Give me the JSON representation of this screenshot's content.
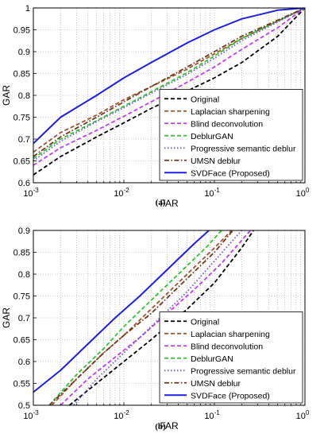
{
  "chart_data": [
    {
      "panel": "(a)",
      "type": "line",
      "xlabel": "FAR",
      "ylabel": "GAR",
      "xscale": "log",
      "xlim": [
        0.001,
        1
      ],
      "ylim": [
        0.6,
        1
      ],
      "xticks": [
        {
          "value": 0.001,
          "base": "10",
          "exp": "-3"
        },
        {
          "value": 0.01,
          "base": "10",
          "exp": "-2"
        },
        {
          "value": 0.1,
          "base": "10",
          "exp": "-1"
        },
        {
          "value": 1,
          "base": "10",
          "exp": "0"
        }
      ],
      "yticks": [
        0.6,
        0.65,
        0.7,
        0.75,
        0.8,
        0.85,
        0.9,
        0.95,
        1
      ],
      "ytick_labels": [
        "0.6",
        "0.65",
        "0.7",
        "0.75",
        "0.8",
        "0.85",
        "0.9",
        "0.95",
        "1"
      ],
      "grid": true,
      "legend_position": "bottom-right",
      "series": [
        {
          "name": "Original",
          "color": "#000000",
          "dash": "dashed",
          "x": [
            0.001,
            0.002,
            0.005,
            0.01,
            0.02,
            0.05,
            0.1,
            0.2,
            0.5,
            1
          ],
          "y": [
            0.618,
            0.66,
            0.705,
            0.737,
            0.77,
            0.81,
            0.84,
            0.875,
            0.935,
            1.0
          ]
        },
        {
          "name": "Laplacian sharpening",
          "color": "#A0522D",
          "dash": "dashed",
          "x": [
            0.001,
            0.002,
            0.005,
            0.01,
            0.02,
            0.05,
            0.1,
            0.2,
            0.5,
            1
          ],
          "y": [
            0.67,
            0.715,
            0.755,
            0.79,
            0.82,
            0.86,
            0.895,
            0.93,
            0.97,
            1.0
          ]
        },
        {
          "name": "Blind deconvolution",
          "color": "#C03CF0",
          "dash": "dashed",
          "x": [
            0.001,
            0.002,
            0.005,
            0.01,
            0.02,
            0.05,
            0.1,
            0.2,
            0.5,
            1
          ],
          "y": [
            0.64,
            0.68,
            0.72,
            0.752,
            0.785,
            0.83,
            0.865,
            0.905,
            0.955,
            1.0
          ]
        },
        {
          "name": "DeblurGAN",
          "color": "#2DC42D",
          "dash": "dashed",
          "x": [
            0.001,
            0.002,
            0.005,
            0.01,
            0.02,
            0.05,
            0.1,
            0.2,
            0.5,
            1
          ],
          "y": [
            0.655,
            0.7,
            0.742,
            0.775,
            0.808,
            0.852,
            0.89,
            0.93,
            0.97,
            1.0
          ]
        },
        {
          "name": "Progressive semantic deblur",
          "color": "#6A5ACD",
          "dash": "dotted",
          "x": [
            0.001,
            0.002,
            0.005,
            0.01,
            0.02,
            0.05,
            0.1,
            0.2,
            0.5,
            1
          ],
          "y": [
            0.65,
            0.695,
            0.74,
            0.772,
            0.805,
            0.848,
            0.885,
            0.925,
            0.968,
            1.0
          ]
        },
        {
          "name": "UMSN deblur",
          "color": "#6B3A1E",
          "dash": "dashdot",
          "x": [
            0.001,
            0.002,
            0.005,
            0.01,
            0.02,
            0.05,
            0.1,
            0.2,
            0.5,
            1
          ],
          "y": [
            0.66,
            0.705,
            0.75,
            0.785,
            0.82,
            0.865,
            0.9,
            0.935,
            0.972,
            1.0
          ]
        },
        {
          "name": "SVDFace (Proposed)",
          "color": "#1E1EE6",
          "dash": "solid",
          "x": [
            0.001,
            0.002,
            0.005,
            0.01,
            0.02,
            0.05,
            0.1,
            0.2,
            0.5,
            1
          ],
          "y": [
            0.69,
            0.75,
            0.8,
            0.84,
            0.875,
            0.92,
            0.95,
            0.975,
            0.995,
            1.0
          ]
        }
      ]
    },
    {
      "panel": "(b)",
      "type": "line",
      "xlabel": "FAR",
      "ylabel": "GAR",
      "xscale": "log",
      "xlim": [
        0.001,
        1
      ],
      "ylim": [
        0.5,
        0.9
      ],
      "xticks": [
        {
          "value": 0.001,
          "base": "10",
          "exp": "-3"
        },
        {
          "value": 0.01,
          "base": "10",
          "exp": "-2"
        },
        {
          "value": 0.1,
          "base": "10",
          "exp": "-1"
        },
        {
          "value": 1,
          "base": "10",
          "exp": "0"
        }
      ],
      "yticks": [
        0.5,
        0.55,
        0.6,
        0.65,
        0.7,
        0.75,
        0.8,
        0.85,
        0.9
      ],
      "ytick_labels": [
        "0.5",
        "0.55",
        "0.6",
        "0.65",
        "0.7",
        "0.75",
        "0.8",
        "0.85",
        "0.9"
      ],
      "grid": true,
      "legend_position": "bottom-right",
      "series": [
        {
          "name": "Original",
          "color": "#000000",
          "dash": "dashed",
          "x": [
            0.0025,
            0.005,
            0.01,
            0.02,
            0.05,
            0.1,
            0.2,
            0.27
          ],
          "y": [
            0.5,
            0.55,
            0.6,
            0.65,
            0.72,
            0.78,
            0.86,
            0.9
          ]
        },
        {
          "name": "Laplacian sharpening",
          "color": "#A0522D",
          "dash": "dashed",
          "x": [
            0.0016,
            0.003,
            0.006,
            0.01,
            0.02,
            0.05,
            0.1,
            0.155
          ],
          "y": [
            0.5,
            0.56,
            0.62,
            0.66,
            0.72,
            0.8,
            0.86,
            0.9
          ]
        },
        {
          "name": "Blind deconvolution",
          "color": "#C03CF0",
          "dash": "dashed",
          "x": [
            0.002,
            0.004,
            0.008,
            0.015,
            0.03,
            0.06,
            0.12,
            0.25
          ],
          "y": [
            0.5,
            0.56,
            0.61,
            0.655,
            0.71,
            0.765,
            0.825,
            0.9
          ]
        },
        {
          "name": "DeblurGAN",
          "color": "#2DC42D",
          "dash": "dashed",
          "x": [
            0.0015,
            0.003,
            0.006,
            0.01,
            0.02,
            0.04,
            0.08,
            0.12
          ],
          "y": [
            0.5,
            0.57,
            0.63,
            0.68,
            0.74,
            0.8,
            0.86,
            0.9
          ]
        },
        {
          "name": "Progressive semantic deblur",
          "color": "#6A5ACD",
          "dash": "dotted",
          "x": [
            0.0028,
            0.005,
            0.01,
            0.02,
            0.05,
            0.1,
            0.2
          ],
          "y": [
            0.5,
            0.56,
            0.62,
            0.68,
            0.76,
            0.83,
            0.9
          ]
        },
        {
          "name": "UMSN deblur",
          "color": "#6B3A1E",
          "dash": "dashdot",
          "x": [
            0.0015,
            0.003,
            0.006,
            0.01,
            0.02,
            0.05,
            0.1,
            0.16
          ],
          "y": [
            0.5,
            0.56,
            0.62,
            0.66,
            0.71,
            0.79,
            0.85,
            0.9
          ]
        },
        {
          "name": "SVDFace (Proposed)",
          "color": "#1E1EE6",
          "dash": "solid",
          "x": [
            0.001,
            0.002,
            0.004,
            0.008,
            0.015,
            0.03,
            0.06,
            0.087
          ],
          "y": [
            0.53,
            0.58,
            0.64,
            0.7,
            0.75,
            0.81,
            0.87,
            0.9
          ]
        }
      ]
    }
  ]
}
